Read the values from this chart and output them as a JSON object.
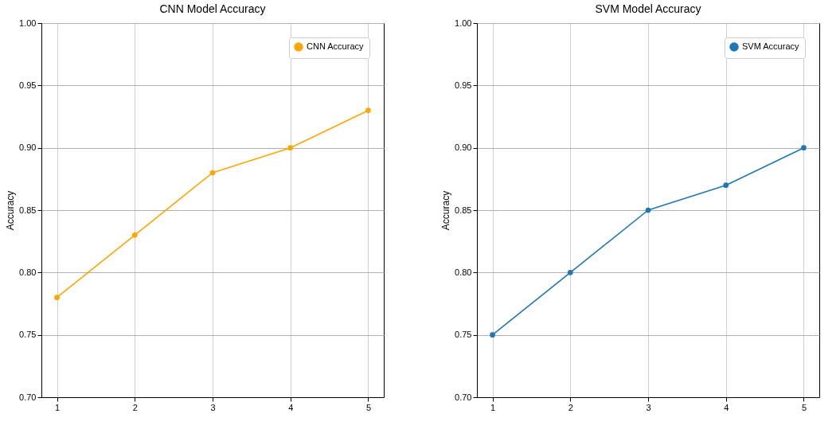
{
  "chart_data": [
    {
      "type": "line",
      "title": "CNN Model Accuracy",
      "ylabel": "Accuracy",
      "x": [
        1,
        2,
        3,
        4,
        5
      ],
      "xlim": [
        0.8,
        5.2
      ],
      "xticks": [
        1,
        2,
        3,
        4,
        5
      ],
      "ylim": [
        0.7,
        1.0
      ],
      "yticks": [
        {
          "value": 0.7,
          "label": "0.70"
        },
        {
          "value": 0.75,
          "label": "0.75"
        },
        {
          "value": 0.8,
          "label": "0.80"
        },
        {
          "value": 0.85,
          "label": "0.85"
        },
        {
          "value": 0.9,
          "label": "0.90"
        },
        {
          "value": 0.95,
          "label": "0.95"
        },
        {
          "value": 1.0,
          "label": "1.00"
        }
      ],
      "grid": true,
      "legend": "top right",
      "marker": "circle",
      "series": [
        {
          "name": "CNN Accuracy",
          "color": "#ffa500",
          "values": [
            0.78,
            0.83,
            0.88,
            0.9,
            0.93
          ]
        }
      ]
    },
    {
      "type": "line",
      "title": "SVM Model Accuracy",
      "ylabel": "Accuracy",
      "x": [
        1,
        2,
        3,
        4,
        5
      ],
      "xlim": [
        0.8,
        5.2
      ],
      "xticks": [
        1,
        2,
        3,
        4,
        5
      ],
      "ylim": [
        0.7,
        1.0
      ],
      "yticks": [
        {
          "value": 0.7,
          "label": "0.70"
        },
        {
          "value": 0.75,
          "label": "0.75"
        },
        {
          "value": 0.8,
          "label": "0.80"
        },
        {
          "value": 0.85,
          "label": "0.85"
        },
        {
          "value": 0.9,
          "label": "0.90"
        },
        {
          "value": 0.95,
          "label": "0.95"
        },
        {
          "value": 1.0,
          "label": "1.00"
        }
      ],
      "grid": true,
      "legend": "top right",
      "marker": "circle",
      "series": [
        {
          "name": "SVM Accuracy",
          "color": "#1f77b4",
          "values": [
            0.75,
            0.8,
            0.85,
            0.87,
            0.9
          ]
        }
      ]
    }
  ]
}
